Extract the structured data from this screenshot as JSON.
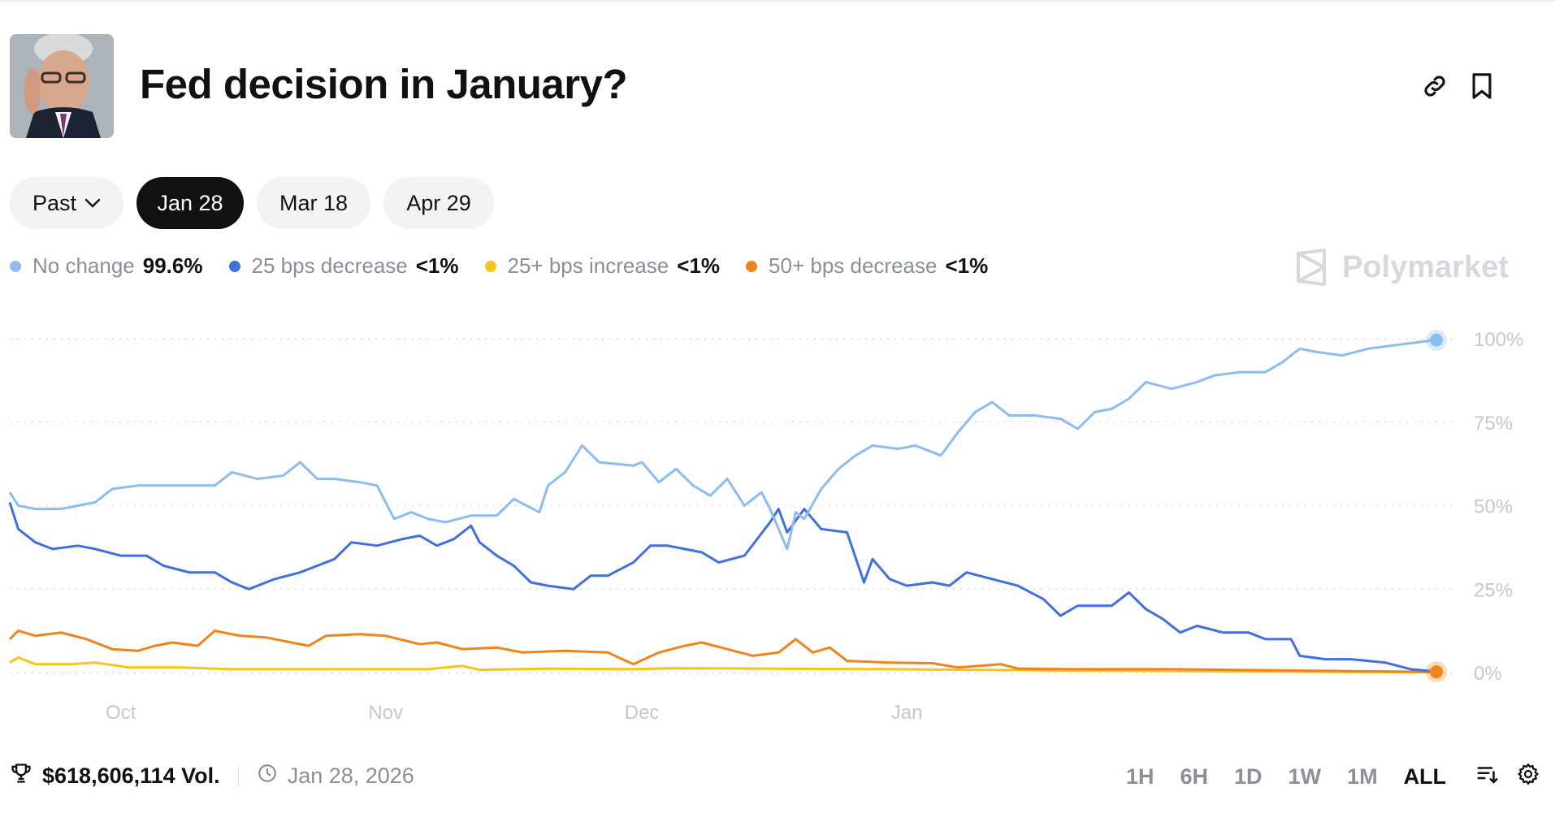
{
  "header": {
    "title": "Fed decision in January?",
    "avatar_icon": "person-photo",
    "link_icon": "link-icon",
    "bookmark_icon": "bookmark-icon"
  },
  "tabs": [
    {
      "label": "Past",
      "has_dropdown": true,
      "active": false
    },
    {
      "label": "Jan 28",
      "active": true
    },
    {
      "label": "Mar 18",
      "active": false
    },
    {
      "label": "Apr 29",
      "active": false
    }
  ],
  "legend": [
    {
      "name": "No change",
      "value": "99.6%",
      "color": "#8cbcf0"
    },
    {
      "name": "25 bps decrease",
      "value": "<1%",
      "color": "#3f6fe0"
    },
    {
      "name": "25+ bps increase",
      "value": "<1%",
      "color": "#f5c518"
    },
    {
      "name": "50+ bps decrease",
      "value": "<1%",
      "color": "#f0841c"
    }
  ],
  "brand": "Polymarket",
  "chart_data": {
    "type": "line",
    "x_unit": "date",
    "x_ticks": [
      "Oct",
      "Nov",
      "Dec",
      "Jan"
    ],
    "x_tick_positions": [
      "2025-10-01",
      "2025-11-01",
      "2025-12-01",
      "2026-01-01"
    ],
    "y_ticks": [
      "100%",
      "75%",
      "50%",
      "25%",
      "0%"
    ],
    "ylim": [
      0,
      100
    ],
    "grid": true,
    "legend_position": "top-left",
    "series": [
      {
        "name": "No change",
        "color": "#8cbcf0",
        "points": [
          [
            "2025-09-18",
            54
          ],
          [
            "2025-09-19",
            50
          ],
          [
            "2025-09-21",
            49
          ],
          [
            "2025-09-24",
            49
          ],
          [
            "2025-09-26",
            50
          ],
          [
            "2025-09-28",
            51
          ],
          [
            "2025-09-30",
            55
          ],
          [
            "2025-10-03",
            56
          ],
          [
            "2025-10-08",
            56
          ],
          [
            "2025-10-12",
            56
          ],
          [
            "2025-10-14",
            60
          ],
          [
            "2025-10-17",
            58
          ],
          [
            "2025-10-20",
            59
          ],
          [
            "2025-10-22",
            63
          ],
          [
            "2025-10-24",
            58
          ],
          [
            "2025-10-26",
            58
          ],
          [
            "2025-10-29",
            57
          ],
          [
            "2025-10-31",
            56
          ],
          [
            "2025-11-02",
            46
          ],
          [
            "2025-11-04",
            48
          ],
          [
            "2025-11-06",
            46
          ],
          [
            "2025-11-08",
            45
          ],
          [
            "2025-11-11",
            47
          ],
          [
            "2025-11-14",
            47
          ],
          [
            "2025-11-16",
            52
          ],
          [
            "2025-11-19",
            48
          ],
          [
            "2025-11-20",
            56
          ],
          [
            "2025-11-22",
            60
          ],
          [
            "2025-11-24",
            68
          ],
          [
            "2025-11-26",
            63
          ],
          [
            "2025-11-30",
            62
          ],
          [
            "2025-12-01",
            63
          ],
          [
            "2025-12-03",
            57
          ],
          [
            "2025-12-05",
            61
          ],
          [
            "2025-12-07",
            56
          ],
          [
            "2025-12-09",
            53
          ],
          [
            "2025-12-11",
            58
          ],
          [
            "2025-12-13",
            50
          ],
          [
            "2025-12-15",
            54
          ],
          [
            "2025-12-16",
            49
          ],
          [
            "2025-12-18",
            37
          ],
          [
            "2025-12-19",
            48
          ],
          [
            "2025-12-20",
            46
          ],
          [
            "2025-12-22",
            55
          ],
          [
            "2025-12-24",
            61
          ],
          [
            "2025-12-26",
            65
          ],
          [
            "2025-12-28",
            68
          ],
          [
            "2025-12-31",
            67
          ],
          [
            "2026-01-02",
            68
          ],
          [
            "2026-01-05",
            65
          ],
          [
            "2026-01-07",
            72
          ],
          [
            "2026-01-09",
            78
          ],
          [
            "2026-01-11",
            81
          ],
          [
            "2026-01-13",
            77
          ],
          [
            "2026-01-16",
            77
          ],
          [
            "2026-01-19",
            76
          ],
          [
            "2026-01-21",
            73
          ],
          [
            "2026-01-23",
            78
          ],
          [
            "2026-01-25",
            79
          ],
          [
            "2026-01-27",
            82
          ],
          [
            "2026-01-29",
            87
          ],
          [
            "2026-02-01",
            85
          ],
          [
            "2026-02-04",
            87
          ],
          [
            "2026-02-06",
            89
          ],
          [
            "2026-02-09",
            90
          ],
          [
            "2026-02-12",
            90
          ],
          [
            "2026-02-14",
            93
          ],
          [
            "2026-02-16",
            97
          ],
          [
            "2026-02-18",
            96
          ],
          [
            "2026-02-21",
            95
          ],
          [
            "2026-02-24",
            97
          ],
          [
            "2026-02-27",
            98
          ],
          [
            "2026-03-02",
            99
          ],
          [
            "2026-03-04",
            99.6
          ]
        ]
      },
      {
        "name": "25 bps decrease",
        "color": "#3f6fe0",
        "points": [
          [
            "2025-09-18",
            51
          ],
          [
            "2025-09-19",
            43
          ],
          [
            "2025-09-21",
            39
          ],
          [
            "2025-09-23",
            37
          ],
          [
            "2025-09-26",
            38
          ],
          [
            "2025-09-28",
            37
          ],
          [
            "2025-10-01",
            35
          ],
          [
            "2025-10-04",
            35
          ],
          [
            "2025-10-06",
            32
          ],
          [
            "2025-10-09",
            30
          ],
          [
            "2025-10-12",
            30
          ],
          [
            "2025-10-14",
            27
          ],
          [
            "2025-10-16",
            25
          ],
          [
            "2025-10-19",
            28
          ],
          [
            "2025-10-22",
            30
          ],
          [
            "2025-10-24",
            32
          ],
          [
            "2025-10-26",
            34
          ],
          [
            "2025-10-28",
            39
          ],
          [
            "2025-10-31",
            38
          ],
          [
            "2025-11-03",
            40
          ],
          [
            "2025-11-05",
            41
          ],
          [
            "2025-11-07",
            38
          ],
          [
            "2025-11-09",
            40
          ],
          [
            "2025-11-11",
            44
          ],
          [
            "2025-11-12",
            39
          ],
          [
            "2025-11-14",
            35
          ],
          [
            "2025-11-16",
            32
          ],
          [
            "2025-11-18",
            27
          ],
          [
            "2025-11-20",
            26
          ],
          [
            "2025-11-23",
            25
          ],
          [
            "2025-11-25",
            29
          ],
          [
            "2025-11-27",
            29
          ],
          [
            "2025-11-30",
            33
          ],
          [
            "2025-12-02",
            38
          ],
          [
            "2025-12-04",
            38
          ],
          [
            "2025-12-06",
            37
          ],
          [
            "2025-12-08",
            36
          ],
          [
            "2025-12-10",
            33
          ],
          [
            "2025-12-13",
            35
          ],
          [
            "2025-12-16",
            45
          ],
          [
            "2025-12-17",
            49
          ],
          [
            "2025-12-18",
            42
          ],
          [
            "2025-12-20",
            49
          ],
          [
            "2025-12-22",
            43
          ],
          [
            "2025-12-25",
            42
          ],
          [
            "2025-12-27",
            27
          ],
          [
            "2025-12-28",
            34
          ],
          [
            "2025-12-30",
            28
          ],
          [
            "2026-01-01",
            26
          ],
          [
            "2026-01-04",
            27
          ],
          [
            "2026-01-06",
            26
          ],
          [
            "2026-01-08",
            30
          ],
          [
            "2026-01-11",
            28
          ],
          [
            "2026-01-14",
            26
          ],
          [
            "2026-01-17",
            22
          ],
          [
            "2026-01-19",
            17
          ],
          [
            "2026-01-21",
            20
          ],
          [
            "2026-01-25",
            20
          ],
          [
            "2026-01-27",
            24
          ],
          [
            "2026-01-29",
            19
          ],
          [
            "2026-01-31",
            16
          ],
          [
            "2026-02-02",
            12
          ],
          [
            "2026-02-04",
            14
          ],
          [
            "2026-02-07",
            12
          ],
          [
            "2026-02-10",
            12
          ],
          [
            "2026-02-12",
            10
          ],
          [
            "2026-02-15",
            10
          ],
          [
            "2026-02-16",
            5
          ],
          [
            "2026-02-19",
            4
          ],
          [
            "2026-02-22",
            4
          ],
          [
            "2026-02-26",
            3
          ],
          [
            "2026-03-01",
            1
          ],
          [
            "2026-03-04",
            0.3
          ]
        ]
      },
      {
        "name": "25+ bps increase",
        "color": "#f5c518",
        "points": [
          [
            "2025-09-18",
            3
          ],
          [
            "2025-09-19",
            4.5
          ],
          [
            "2025-09-21",
            2.5
          ],
          [
            "2025-09-25",
            2.5
          ],
          [
            "2025-09-28",
            3
          ],
          [
            "2025-10-02",
            1.5
          ],
          [
            "2025-10-08",
            1.5
          ],
          [
            "2025-10-14",
            1.0
          ],
          [
            "2025-10-25",
            1.0
          ],
          [
            "2025-11-06",
            1.0
          ],
          [
            "2025-11-10",
            2.0
          ],
          [
            "2025-11-12",
            0.8
          ],
          [
            "2025-11-20",
            1.2
          ],
          [
            "2025-11-30",
            1.0
          ],
          [
            "2025-12-04",
            1.3
          ],
          [
            "2025-12-15",
            1.2
          ],
          [
            "2025-12-30",
            1.0
          ],
          [
            "2026-01-10",
            0.8
          ],
          [
            "2026-01-25",
            0.5
          ],
          [
            "2026-02-10",
            0.3
          ],
          [
            "2026-03-04",
            0.1
          ]
        ]
      },
      {
        "name": "50+ bps decrease",
        "color": "#f0841c",
        "points": [
          [
            "2025-09-18",
            10
          ],
          [
            "2025-09-19",
            12.5
          ],
          [
            "2025-09-21",
            11
          ],
          [
            "2025-09-24",
            12
          ],
          [
            "2025-09-27",
            10
          ],
          [
            "2025-09-30",
            7
          ],
          [
            "2025-10-03",
            6.5
          ],
          [
            "2025-10-05",
            8
          ],
          [
            "2025-10-07",
            9
          ],
          [
            "2025-10-10",
            8
          ],
          [
            "2025-10-12",
            12.5
          ],
          [
            "2025-10-15",
            11
          ],
          [
            "2025-10-18",
            10.5
          ],
          [
            "2025-10-21",
            9
          ],
          [
            "2025-10-23",
            8
          ],
          [
            "2025-10-25",
            11
          ],
          [
            "2025-10-29",
            11.5
          ],
          [
            "2025-11-01",
            11
          ],
          [
            "2025-11-05",
            8.5
          ],
          [
            "2025-11-07",
            9
          ],
          [
            "2025-11-10",
            7
          ],
          [
            "2025-11-14",
            7.5
          ],
          [
            "2025-11-17",
            6
          ],
          [
            "2025-11-22",
            6.5
          ],
          [
            "2025-11-27",
            6
          ],
          [
            "2025-11-30",
            2.5
          ],
          [
            "2025-12-03",
            6
          ],
          [
            "2025-12-06",
            8
          ],
          [
            "2025-12-08",
            9
          ],
          [
            "2025-12-11",
            7
          ],
          [
            "2025-12-14",
            5
          ],
          [
            "2025-12-17",
            6
          ],
          [
            "2025-12-19",
            10
          ],
          [
            "2025-12-21",
            6
          ],
          [
            "2025-12-23",
            7.5
          ],
          [
            "2025-12-25",
            3.5
          ],
          [
            "2025-12-30",
            3
          ],
          [
            "2026-01-04",
            2.8
          ],
          [
            "2026-01-07",
            1.5
          ],
          [
            "2026-01-12",
            2.5
          ],
          [
            "2026-01-14",
            1.2
          ],
          [
            "2026-01-20",
            1.0
          ],
          [
            "2026-02-01",
            1.0
          ],
          [
            "2026-02-15",
            0.6
          ],
          [
            "2026-03-04",
            0.2
          ]
        ]
      }
    ]
  },
  "footer": {
    "trophy_icon": "trophy-icon",
    "volume": "$618,606,114 Vol.",
    "clock_icon": "clock-icon",
    "end_date": "Jan 28, 2026"
  },
  "ranges": [
    "1H",
    "6H",
    "1D",
    "1W",
    "1M",
    "ALL"
  ],
  "active_range": "ALL"
}
